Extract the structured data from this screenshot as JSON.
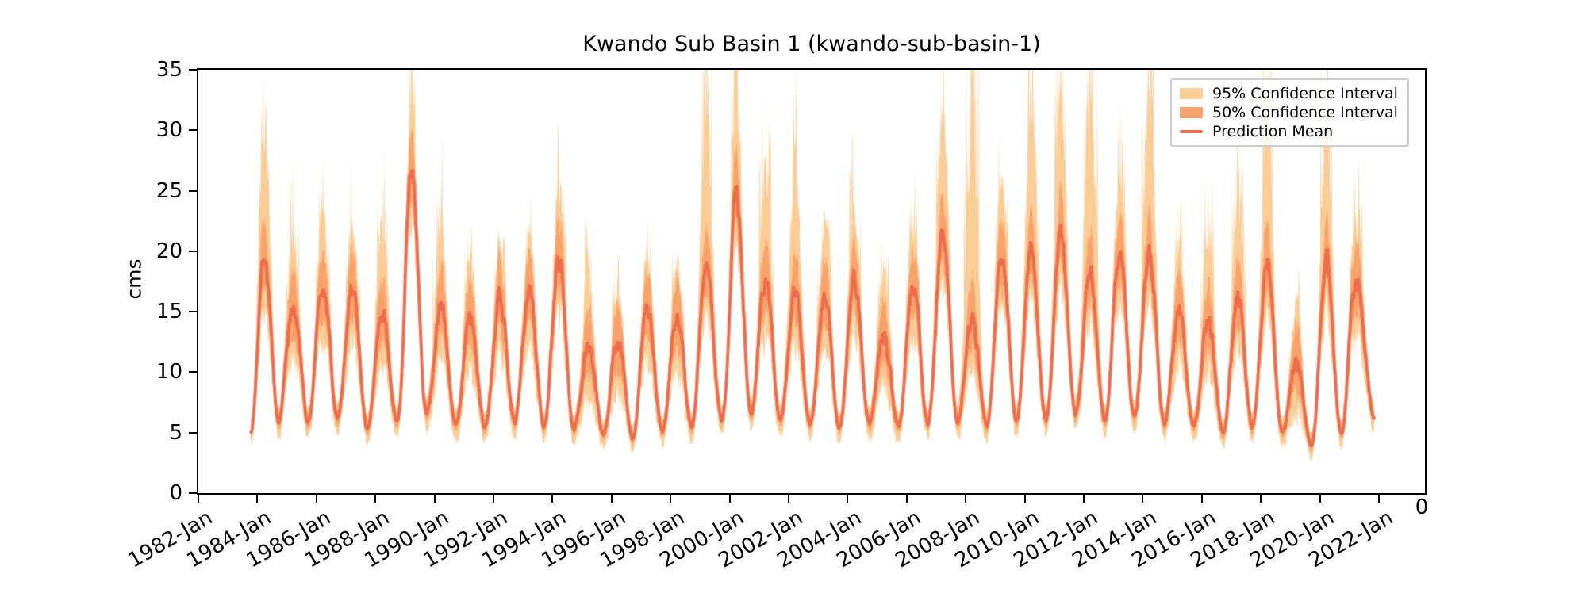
{
  "chart_data": {
    "type": "line",
    "title": "Kwando Sub Basin 1 (kwando-sub-basin-1)",
    "xlabel": "",
    "ylabel": "cms",
    "ylim": [
      0,
      35
    ],
    "xlim_years": [
      1982.0,
      2023.6
    ],
    "grid": false,
    "legend_position": "upper right",
    "corner_tick_label": "0",
    "yticks": [
      "0",
      "5",
      "10",
      "15",
      "20",
      "25",
      "30",
      "35"
    ],
    "ytick_values": [
      0,
      5,
      10,
      15,
      20,
      25,
      30,
      35
    ],
    "xticks": [
      "1982-Jan",
      "1984-Jan",
      "1986-Jan",
      "1988-Jan",
      "1990-Jan",
      "1992-Jan",
      "1994-Jan",
      "1996-Jan",
      "1998-Jan",
      "2000-Jan",
      "2002-Jan",
      "2004-Jan",
      "2006-Jan",
      "2008-Jan",
      "2010-Jan",
      "2012-Jan",
      "2014-Jan",
      "2016-Jan",
      "2018-Jan",
      "2020-Jan",
      "2022-Jan"
    ],
    "xtick_years": [
      1982,
      1984,
      1986,
      1988,
      1990,
      1992,
      1994,
      1996,
      1998,
      2000,
      2002,
      2004,
      2006,
      2008,
      2010,
      2012,
      2014,
      2016,
      2018,
      2020,
      2022
    ],
    "series": [
      {
        "name": "95% Confidence Interval",
        "kind": "band",
        "color": "#FACC96"
      },
      {
        "name": "50% Confidence Interval",
        "kind": "band",
        "color": "#F8A36B"
      },
      {
        "name": "Prediction Mean",
        "kind": "line",
        "color": "#EE6D4F"
      }
    ],
    "series_start": {
      "x": 1983.78,
      "y": 5.0
    },
    "series_end": {
      "x": 2021.84,
      "y": 6.2
    },
    "seasonality": {
      "peak_month_offset": 0.22,
      "trough_month_offset": 0.72
    },
    "yearly": {
      "years": [
        1984,
        1985,
        1986,
        1987,
        1988,
        1989,
        1990,
        1991,
        1992,
        1993,
        1994,
        1995,
        1996,
        1997,
        1998,
        1999,
        2000,
        2001,
        2002,
        2003,
        2004,
        2005,
        2006,
        2007,
        2008,
        2009,
        2010,
        2011,
        2012,
        2013,
        2014,
        2015,
        2016,
        2017,
        2018,
        2019,
        2020,
        2021
      ],
      "peak_mean": [
        19.7,
        15.8,
        17.3,
        17.0,
        15.0,
        27.0,
        15.5,
        14.5,
        16.5,
        16.6,
        19.5,
        12.3,
        12.7,
        15.5,
        14.9,
        19.3,
        24.7,
        18.0,
        16.6,
        16.4,
        17.5,
        13.0,
        17.0,
        21.6,
        14.2,
        19.7,
        19.8,
        21.3,
        18.0,
        20.2,
        19.8,
        15.0,
        14.5,
        16.0,
        18.9,
        10.8,
        18.9,
        17.6
      ],
      "trough_after_mean": [
        6.0,
        5.8,
        6.2,
        5.5,
        6.0,
        6.5,
        5.8,
        5.5,
        6.0,
        5.5,
        5.2,
        4.8,
        4.5,
        5.0,
        5.5,
        6.0,
        6.5,
        6.0,
        5.8,
        5.5,
        6.0,
        5.5,
        5.8,
        6.0,
        5.5,
        6.2,
        6.0,
        6.5,
        6.0,
        6.2,
        5.8,
        5.5,
        5.0,
        5.5,
        5.0,
        3.9,
        4.9,
        6.2
      ],
      "ci95_peak_upper": [
        34,
        22,
        23.5,
        22.5,
        22.5,
        33,
        22.5,
        19.5,
        21,
        21,
        25.5,
        18,
        16.5,
        19.5,
        19,
        34.5,
        35,
        27.5,
        27.5,
        22.5,
        24,
        18.5,
        21.5,
        35,
        35,
        26,
        35,
        35,
        35,
        26.5,
        35,
        20,
        22,
        25,
        33,
        15.5,
        34.5,
        22.5
      ],
      "ci95_trough_lower_typical": 2.8,
      "ci50_halfwidth_trough": 0.8,
      "ci50_halfwidth_peak": 2.6
    }
  }
}
